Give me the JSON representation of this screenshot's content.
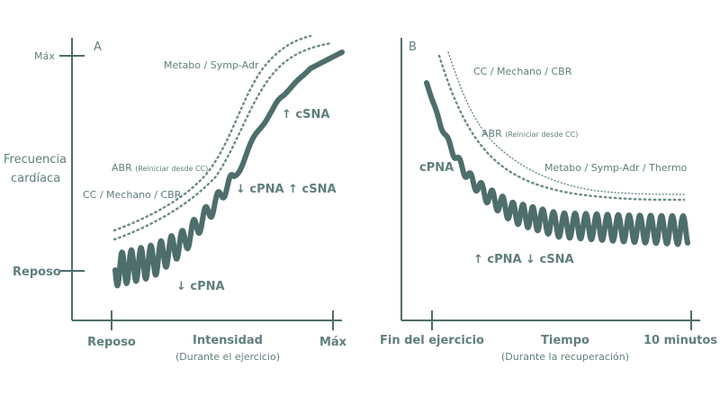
{
  "panel_a": {
    "letter": "A",
    "y_top": "Máx",
    "y_label_line1": "Frecuencia",
    "y_label_line2": "cardíaca",
    "y_rest": "Reposo",
    "x_rest": "Reposo",
    "x_mid": "Intensidad",
    "x_mid_sub": "(Durante el ejercicio)",
    "x_max": "Máx",
    "label_metabo": "Metabo / Symp-Adr",
    "label_abr": "ABR",
    "label_abr_note": "(Reiniciar desde CC)",
    "label_cc": "CC / Mechano / CBR",
    "label_up_csna": "↑ cSNA",
    "label_mid": "↓ cPNA  ↑ cSNA",
    "label_down_cpna": "↓ cPNA"
  },
  "panel_b": {
    "letter": "B",
    "x_start": "Fin del ejercicio",
    "x_mid": "Tiempo",
    "x_mid_sub": "(Durante la recuperación)",
    "x_end": "10 minutos",
    "label_cc": "CC / Mechano / CBR",
    "label_abr": "ABR",
    "label_abr_note": "(Reiniciar desde CC)",
    "label_cpna": "cPNA",
    "label_metabo": "Metabo / Symp-Adr / Thermo",
    "label_bottom": "↑ cPNA  ↓ cSNA"
  }
}
